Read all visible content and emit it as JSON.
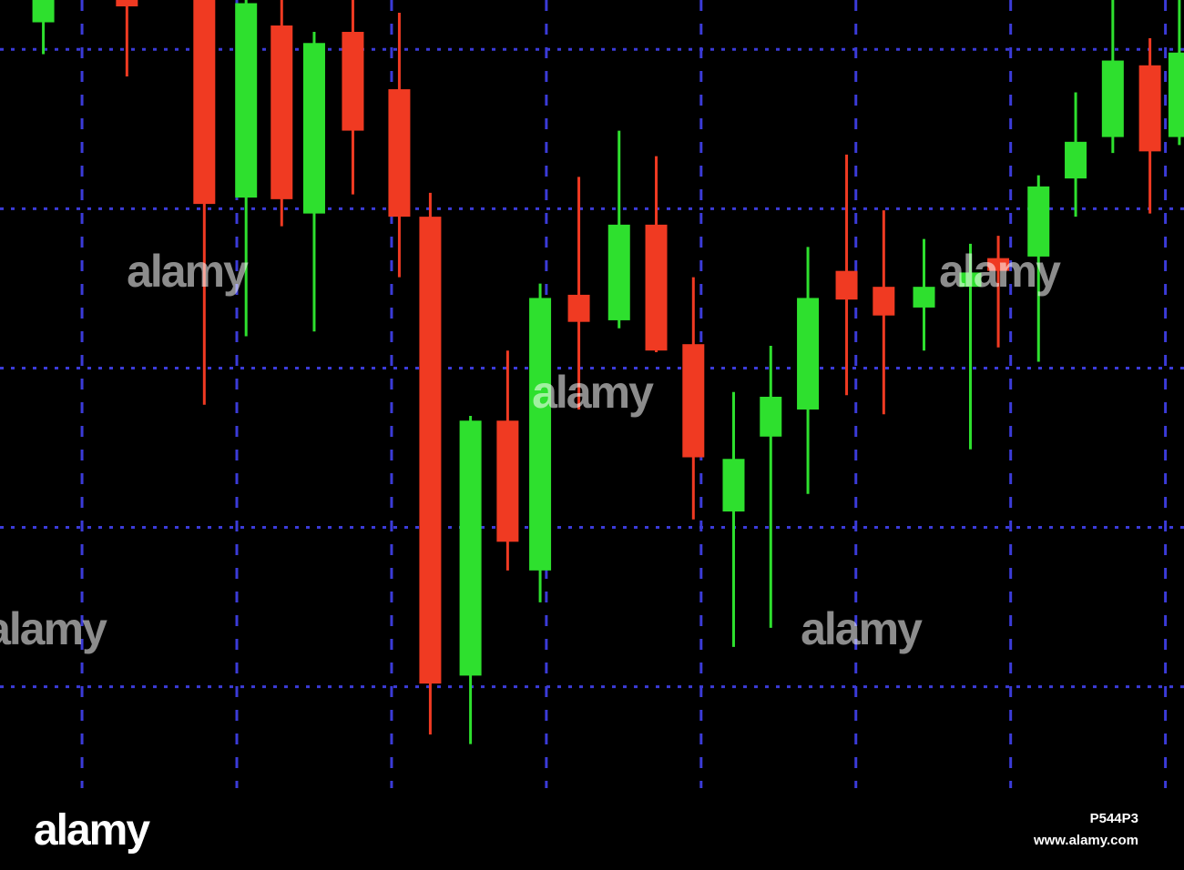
{
  "chart_data": {
    "type": "candlestick",
    "x": [
      0.75,
      1.29,
      1.79,
      2.06,
      2.29,
      2.5,
      2.75,
      3.05,
      3.25,
      3.51,
      3.75,
      3.96,
      4.21,
      4.47,
      4.71,
      4.95,
      5.21,
      5.45,
      5.69,
      5.94,
      6.18,
      6.44,
      6.74,
      6.92,
      7.18,
      7.42,
      7.66,
      7.9,
      8.09
    ],
    "open": [
      5.17,
      5.31,
      5.31,
      4.07,
      5.15,
      3.97,
      5.11,
      4.75,
      3.95,
      1.07,
      2.67,
      1.73,
      3.46,
      3.3,
      3.9,
      3.15,
      2.1,
      2.57,
      2.74,
      3.61,
      3.51,
      3.38,
      3.51,
      3.69,
      3.7,
      4.19,
      4.45,
      4.9,
      4.45
    ],
    "high": [
      5.31,
      5.31,
      5.31,
      5.31,
      5.31,
      5.11,
      5.31,
      5.23,
      4.1,
      2.7,
      3.11,
      3.53,
      4.2,
      4.49,
      4.33,
      3.57,
      2.85,
      3.14,
      3.76,
      4.34,
      3.99,
      3.81,
      3.78,
      3.83,
      4.21,
      4.73,
      5.31,
      5.07,
      5.31
    ],
    "low": [
      4.97,
      4.83,
      2.77,
      3.2,
      3.89,
      3.23,
      4.09,
      3.57,
      0.7,
      0.64,
      1.73,
      1.53,
      2.74,
      3.25,
      3.1,
      2.05,
      1.25,
      1.37,
      2.21,
      2.83,
      2.71,
      3.11,
      2.49,
      3.13,
      3.04,
      3.95,
      4.35,
      3.97,
      4.4
    ],
    "close": [
      5.31,
      5.27,
      4.03,
      5.29,
      4.06,
      5.04,
      4.49,
      3.95,
      1.02,
      2.67,
      1.91,
      3.44,
      3.29,
      3.9,
      3.11,
      2.44,
      2.43,
      2.82,
      3.44,
      3.43,
      3.33,
      3.51,
      3.6,
      3.61,
      4.14,
      4.42,
      4.93,
      4.36,
      4.98
    ],
    "up_color": "#2ee02e",
    "down_color": "#f03a22",
    "grid": true,
    "grid_color": "#3b3bd8",
    "xlim": [
      0.47,
      8.12
    ],
    "ylim": [
      -0.15,
      5.31
    ],
    "xticks": [
      1,
      2,
      3,
      4,
      5,
      6,
      7,
      8
    ],
    "yticks": [
      1,
      2,
      3,
      4,
      5
    ]
  },
  "watermark": "alamy",
  "footer": {
    "logo": "alamy",
    "image_id": "P544P3",
    "site": "www.alamy.com"
  }
}
